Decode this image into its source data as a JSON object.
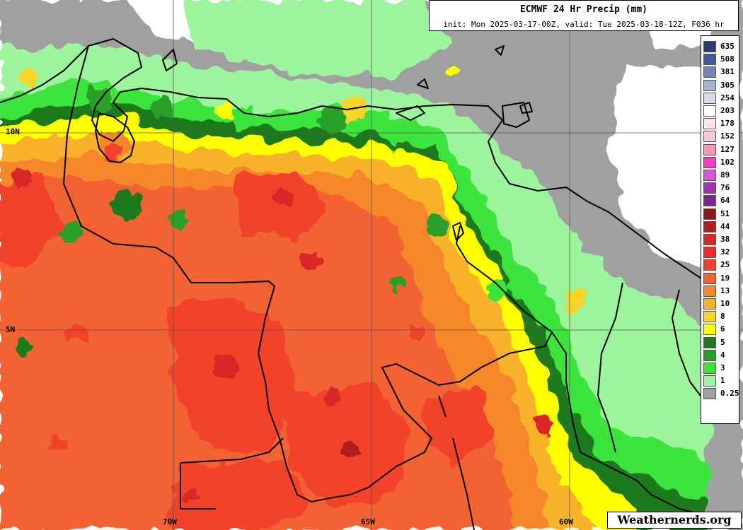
{
  "title": "ECMWF 24 Hr Precip (mm)",
  "subtitle": "init: Mon 2025-03-17-00Z, valid: Tue 2025-03-18-12Z, F036 hr",
  "credit": "Weathernerds.org",
  "lat_labels": [
    "10N",
    "5N"
  ],
  "lon_labels": [
    "70W",
    "65W",
    "60W"
  ],
  "legend": [
    {
      "label": "635",
      "color": "#2b3a73"
    },
    {
      "label": "508",
      "color": "#45589a"
    },
    {
      "label": "381",
      "color": "#7385b8"
    },
    {
      "label": "305",
      "color": "#a7b2d2"
    },
    {
      "label": "254",
      "color": "#d7dbe9"
    },
    {
      "label": "203",
      "color": "#ffffff"
    },
    {
      "label": "178",
      "color": "#ffe6ea"
    },
    {
      "label": "152",
      "color": "#ffc6d3"
    },
    {
      "label": "127",
      "color": "#ff92b6"
    },
    {
      "label": "102",
      "color": "#f23cc4"
    },
    {
      "label": "89",
      "color": "#d856d8"
    },
    {
      "label": "76",
      "color": "#a233b0"
    },
    {
      "label": "64",
      "color": "#7a2590"
    },
    {
      "label": "51",
      "color": "#8a1a1a"
    },
    {
      "label": "44",
      "color": "#b01e1e"
    },
    {
      "label": "38",
      "color": "#d92626"
    },
    {
      "label": "32",
      "color": "#f52a2a"
    },
    {
      "label": "25",
      "color": "#f2422a"
    },
    {
      "label": "19",
      "color": "#f26230"
    },
    {
      "label": "13",
      "color": "#f5862c"
    },
    {
      "label": "10",
      "color": "#f7b22c"
    },
    {
      "label": "8",
      "color": "#fad428"
    },
    {
      "label": "6",
      "color": "#ffff00"
    },
    {
      "label": "5",
      "color": "#1f7a1f"
    },
    {
      "label": "4",
      "color": "#2aa02a"
    },
    {
      "label": "3",
      "color": "#3ce43c"
    },
    {
      "label": "1",
      "color": "#9cf49c"
    },
    {
      "label": "0.25",
      "color": "#a0a0a0"
    }
  ]
}
